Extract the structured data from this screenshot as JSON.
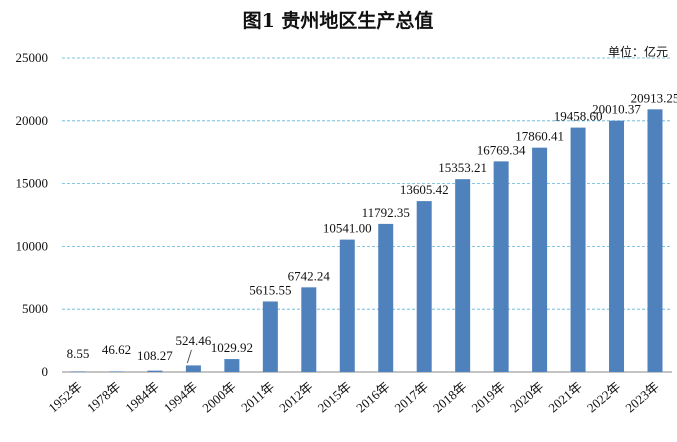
{
  "chart_data": {
    "type": "bar",
    "title": "图1 贵州地区生产总值",
    "unit_label": "单位：亿元",
    "categories": [
      "1952年",
      "1978年",
      "1984年",
      "1994年",
      "2000年",
      "2011年",
      "2012年",
      "2015年",
      "2016年",
      "2017年",
      "2018年",
      "2019年",
      "2020年",
      "2021年",
      "2022年",
      "2023年"
    ],
    "values": [
      8.55,
      46.62,
      108.27,
      524.46,
      1029.92,
      5615.55,
      6742.24,
      10541.0,
      11792.35,
      13605.42,
      15353.21,
      16769.34,
      17860.41,
      19458.6,
      20010.37,
      20913.25
    ],
    "value_labels": [
      "8.55",
      "46.62",
      "108.27",
      "524.46",
      "1029.92",
      "5615.55",
      "6742.24",
      "10541.00",
      "11792.35",
      "13605.42",
      "15353.21",
      "16769.34",
      "17860.41",
      "19458.60",
      "20010.37",
      "20913.25"
    ],
    "y_ticks": [
      0,
      5000,
      10000,
      15000,
      20000,
      25000
    ],
    "ylim": [
      0,
      25000
    ],
    "grid": true,
    "colors": {
      "bar": "#4f81bd",
      "grid": "#5fb4d8"
    }
  }
}
